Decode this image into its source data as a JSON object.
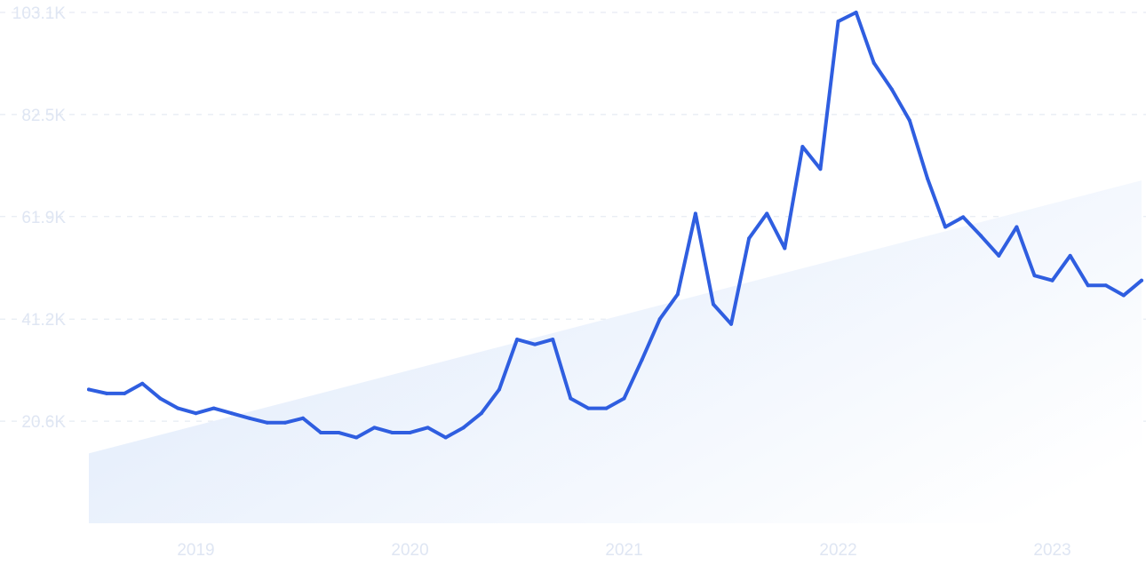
{
  "chart_data": {
    "type": "line",
    "y_ticks": [
      "103.1K",
      "82.5K",
      "61.9K",
      "41.2K",
      "20.6K"
    ],
    "y_tick_values": [
      103100,
      82500,
      61900,
      41200,
      20600
    ],
    "x_ticks": [
      "2019",
      "2020",
      "2021",
      "2022",
      "2023"
    ],
    "ylim": [
      0,
      103100
    ],
    "grid": true,
    "x_start": "2018-07",
    "series": [
      {
        "color": "#2f5ee0",
        "values": [
          27000,
          26200,
          26200,
          28200,
          25200,
          23200,
          22200,
          23200,
          22200,
          21200,
          20300,
          20300,
          21200,
          18300,
          18300,
          17300,
          19300,
          18300,
          18300,
          19300,
          17300,
          19300,
          22200,
          27000,
          37100,
          36100,
          37100,
          25200,
          23200,
          23200,
          25200,
          33000,
          41200,
          46200,
          62500,
          44200,
          40200,
          57500,
          62500,
          55500,
          76000,
          71500,
          101300,
          103100,
          92900,
          87600,
          81300,
          69600,
          59800,
          61800,
          58000,
          54000,
          59800,
          50000,
          49000,
          54000,
          48000,
          48000,
          46000,
          49000
        ]
      }
    ],
    "trend": {
      "start_value": 14100,
      "end_value": 69200,
      "color": "#dceafb"
    }
  }
}
